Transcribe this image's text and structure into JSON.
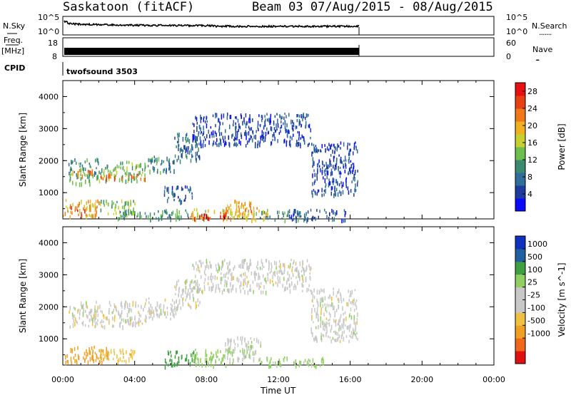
{
  "header": {
    "station": "Saskatoon (fitACF)",
    "beam_date": "Beam 03 07/Aug/2015 - 08/Aug/2015"
  },
  "panels": {
    "nsky_label": "N.Sky",
    "freq_label": "Freq.",
    "freq_unit": "[MHz]",
    "cpid_label": "CPID",
    "nsearch_label": "N.Search",
    "nave_label": "Nave",
    "nsky_ticks": [
      "10^5",
      "10^0"
    ],
    "nsearch_ticks": [
      "10^5",
      "10^0"
    ],
    "freq_ticks": [
      "18",
      "8"
    ],
    "nave_ticks": [
      "60",
      "0"
    ],
    "cpid_value": "twofsound 3503",
    "legend_dots": "......."
  },
  "colors": {
    "power": [
      "#0a0aff",
      "#1e3ca0",
      "#2e6e98",
      "#3a8a70",
      "#6cbf4a",
      "#c8d030",
      "#f0b020",
      "#f07818",
      "#e84010",
      "#e81010"
    ],
    "velocity": [
      "#e01010",
      "#f06818",
      "#f0a020",
      "#f0c040",
      "#c8c8c8",
      "#c8c8c8",
      "#90d060",
      "#40a040",
      "#2060a0",
      "#1030c0"
    ]
  },
  "chart_data": [
    {
      "type": "heatmap",
      "title": "",
      "xlabel": "Time UT",
      "ylabel": "Slant Range [km]",
      "colorbar_label": "Power [dB]",
      "colorbar_ticks": [
        "4",
        "8",
        "12",
        "16",
        "20",
        "24",
        "28"
      ],
      "x_ticks": [
        "00:00",
        "04:00",
        "08:00",
        "12:00",
        "16:00",
        "20:00",
        "00:00"
      ],
      "y_ticks": [
        "1000",
        "2000",
        "3000",
        "4000"
      ],
      "xlim": [
        0,
        24
      ],
      "ylim": [
        180,
        4500
      ],
      "clim": [
        0,
        30
      ],
      "data_end_hour": 16.4,
      "regions": [
        {
          "t": [
            0.0,
            2.0
          ],
          "r": [
            280,
            800
          ],
          "value": 20
        },
        {
          "t": [
            0.3,
            1.2
          ],
          "r": [
            330,
            600
          ],
          "value": 26
        },
        {
          "t": [
            2.0,
            4.0
          ],
          "r": [
            320,
            800
          ],
          "value": 14
        },
        {
          "t": [
            3.0,
            7.0
          ],
          "r": [
            180,
            500
          ],
          "value": 10
        },
        {
          "t": [
            0.3,
            2.0
          ],
          "r": [
            1300,
            2100
          ],
          "value": 11
        },
        {
          "t": [
            0.5,
            2.0
          ],
          "r": [
            1550,
            1750
          ],
          "value": 21
        },
        {
          "t": [
            2.0,
            4.6
          ],
          "r": [
            1400,
            2000
          ],
          "value": 13
        },
        {
          "t": [
            2.0,
            4.6
          ],
          "r": [
            1450,
            1620
          ],
          "value": 24
        },
        {
          "t": [
            4.6,
            6.2
          ],
          "r": [
            1650,
            2200
          ],
          "value": 9
        },
        {
          "t": [
            6.2,
            7.6
          ],
          "r": [
            2000,
            2900
          ],
          "value": 7
        },
        {
          "t": [
            5.6,
            7.2
          ],
          "r": [
            750,
            1250
          ],
          "value": 6
        },
        {
          "t": [
            7.0,
            11.5
          ],
          "r": [
            180,
            520
          ],
          "value": 18
        },
        {
          "t": [
            7.3,
            9.2
          ],
          "r": [
            220,
            420
          ],
          "value": 29
        },
        {
          "t": [
            9.0,
            10.8
          ],
          "r": [
            350,
            800
          ],
          "value": 21
        },
        {
          "t": [
            11.0,
            13.2
          ],
          "r": [
            190,
            440
          ],
          "value": 9
        },
        {
          "t": [
            12.5,
            15.8
          ],
          "r": [
            180,
            500
          ],
          "value": 6
        },
        {
          "t": [
            7.2,
            13.8
          ],
          "r": [
            2500,
            3500
          ],
          "value": 5
        },
        {
          "t": [
            13.8,
            16.4
          ],
          "r": [
            950,
            2600
          ],
          "value": 5
        }
      ]
    },
    {
      "type": "heatmap",
      "title": "",
      "xlabel": "Time UT",
      "ylabel": "Slant Range [km]",
      "colorbar_label": "Velocity [m s^-1]",
      "colorbar_ticks": [
        "-1000",
        "-500",
        "-100",
        "-25",
        "25",
        "100",
        "500",
        "1000"
      ],
      "x_ticks": [
        "00:00",
        "04:00",
        "08:00",
        "12:00",
        "16:00",
        "20:00",
        "00:00"
      ],
      "y_ticks": [
        "1000",
        "2000",
        "3000",
        "4000"
      ],
      "xlim": [
        0,
        24
      ],
      "ylim": [
        180,
        4500
      ],
      "data_end_hour": 16.4,
      "regions": [
        {
          "t": [
            0.0,
            2.5
          ],
          "r": [
            300,
            800
          ],
          "value": -180
        },
        {
          "t": [
            2.0,
            4.0
          ],
          "r": [
            320,
            700
          ],
          "value": -80
        },
        {
          "t": [
            0.3,
            4.6
          ],
          "r": [
            1400,
            2200
          ],
          "value": 0
        },
        {
          "t": [
            4.6,
            6.5
          ],
          "r": [
            1650,
            2300
          ],
          "value": 0
        },
        {
          "t": [
            6.2,
            7.6
          ],
          "r": [
            2000,
            2900
          ],
          "value": 0
        },
        {
          "t": [
            5.6,
            7.4
          ],
          "r": [
            180,
            650
          ],
          "value": 150
        },
        {
          "t": [
            7.2,
            9.5
          ],
          "r": [
            180,
            700
          ],
          "value": 60
        },
        {
          "t": [
            9.0,
            11.0
          ],
          "r": [
            350,
            1100
          ],
          "value": 5
        },
        {
          "t": [
            11.0,
            14.5
          ],
          "r": [
            180,
            450
          ],
          "value": 50
        },
        {
          "t": [
            7.2,
            13.8
          ],
          "r": [
            2500,
            3500
          ],
          "value": 0
        },
        {
          "t": [
            13.8,
            16.4
          ],
          "r": [
            950,
            2600
          ],
          "value": 0
        }
      ]
    }
  ]
}
